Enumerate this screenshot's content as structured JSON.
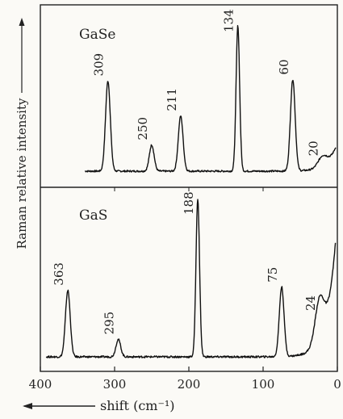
{
  "chart_data": {
    "type": "line",
    "ylabel": "Raman relative intensity",
    "xlabel": "shift (cm⁻¹)",
    "x_ticks": [
      400,
      300,
      200,
      100,
      0
    ],
    "xlim": [
      400,
      0
    ],
    "panels": [
      {
        "name": "GaSe",
        "peaks": [
          {
            "label": "309",
            "x": 309,
            "intensity": 0.62
          },
          {
            "label": "250",
            "x": 250,
            "intensity": 0.18
          },
          {
            "label": "211",
            "x": 211,
            "intensity": 0.38
          },
          {
            "label": "134",
            "x": 134,
            "intensity": 1.0
          },
          {
            "label": "60",
            "x": 60,
            "intensity": 0.63
          },
          {
            "label": "20",
            "x": 20,
            "intensity": 0.07
          }
        ]
      },
      {
        "name": "GaS",
        "peaks": [
          {
            "label": "363",
            "x": 363,
            "intensity": 0.42
          },
          {
            "label": "295",
            "x": 295,
            "intensity": 0.11
          },
          {
            "label": "188",
            "x": 188,
            "intensity": 1.0
          },
          {
            "label": "75",
            "x": 75,
            "intensity": 0.44
          },
          {
            "label": "24",
            "x": 24,
            "intensity": 0.26
          }
        ]
      }
    ]
  }
}
